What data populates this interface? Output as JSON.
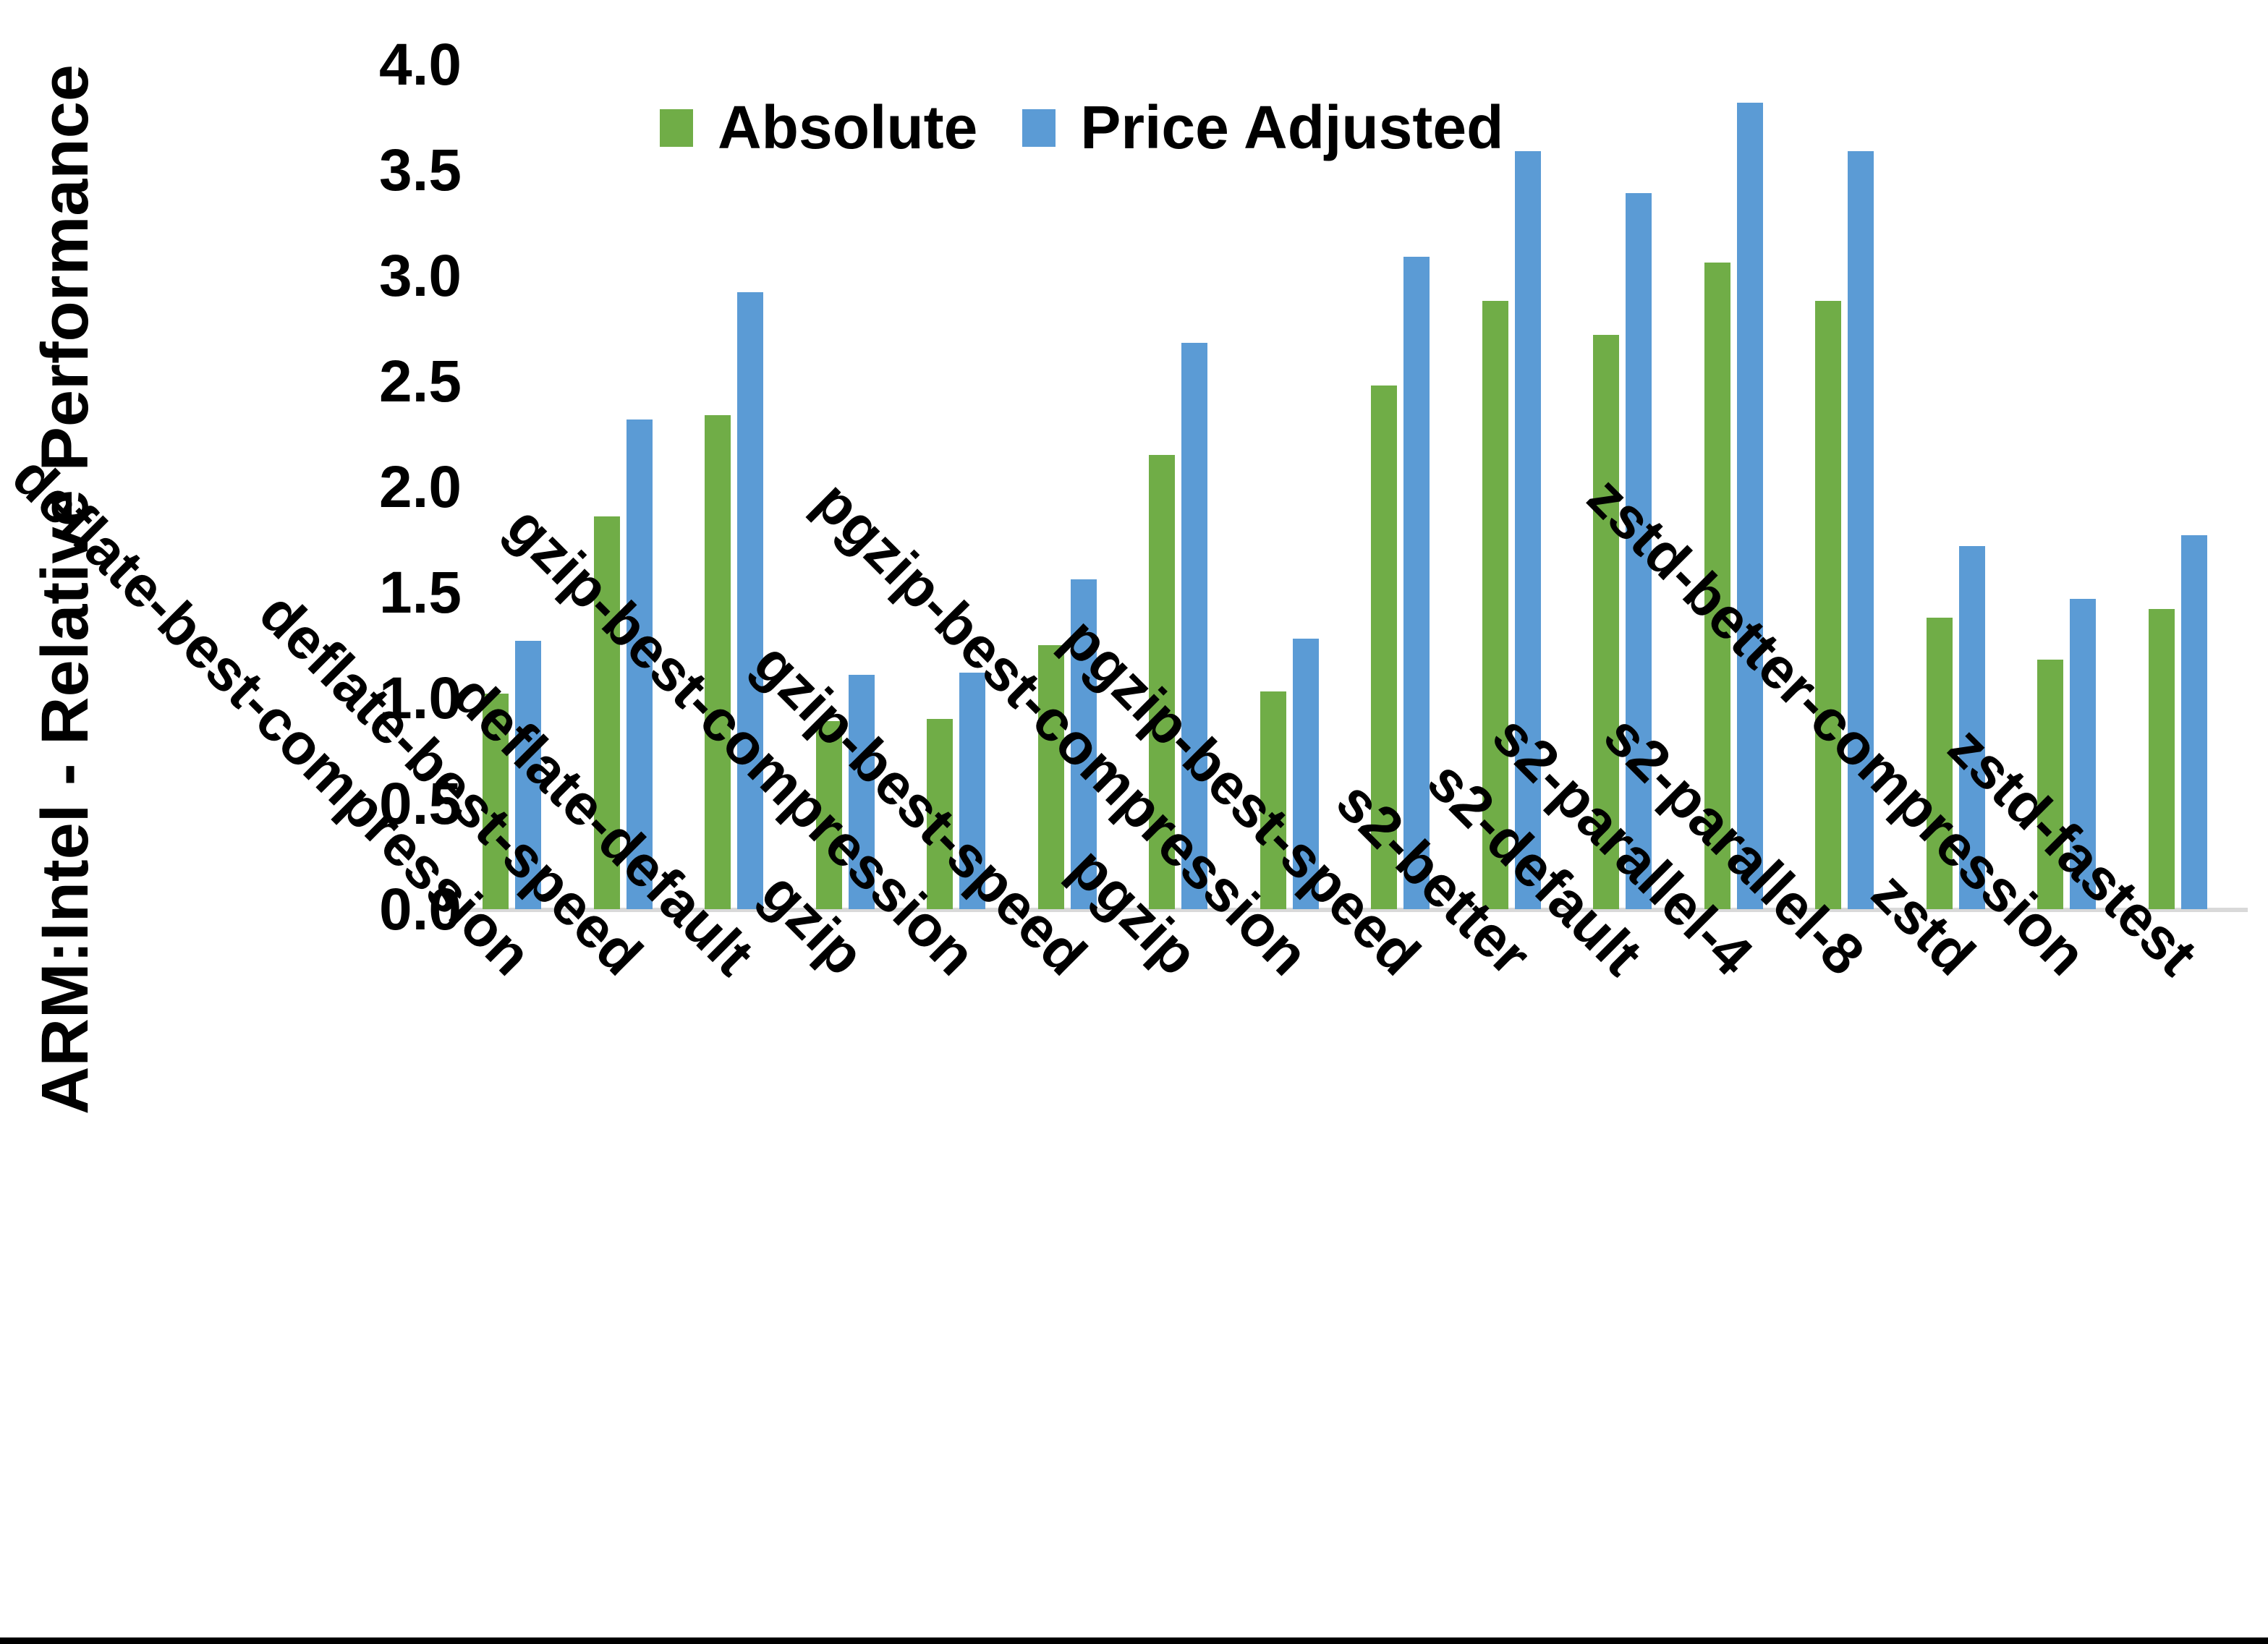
{
  "chart_data": {
    "type": "bar",
    "title": "",
    "ylabel": "ARM:Intel - Relative Performance",
    "xlabel": "",
    "categories": [
      "deflate-best-compression",
      "deflate-best-speed",
      "deflate-default",
      "gzip",
      "gzip-best-compression",
      "gzip-best-speed",
      "pgzip",
      "pgzip-best-compression",
      "pgzip-best-speed",
      "s2-better",
      "s2-default",
      "s2-parallel-4",
      "s2-parallel-8",
      "zstd",
      "zstd-better-compression",
      "zstd-fastest"
    ],
    "series": [
      {
        "name": "Absolute",
        "color": "#70AD47",
        "values": [
          1.02,
          1.86,
          2.34,
          0.89,
          0.9,
          1.25,
          2.15,
          1.03,
          2.48,
          2.88,
          2.72,
          3.06,
          2.88,
          1.38,
          1.18,
          1.42
        ]
      },
      {
        "name": "Price Adjusted",
        "color": "#5B9BD5",
        "values": [
          1.27,
          2.32,
          2.92,
          1.11,
          1.12,
          1.56,
          2.68,
          1.28,
          3.09,
          3.59,
          3.39,
          3.82,
          3.59,
          1.72,
          1.47,
          1.77
        ]
      }
    ],
    "ylim": [
      0.0,
      4.0
    ],
    "yticks": [
      "0.0",
      "0.5",
      "1.0",
      "1.5",
      "2.0",
      "2.5",
      "3.0",
      "3.5",
      "4.0"
    ],
    "legend_position": "top-center",
    "grid": false,
    "axis_color": "#D9D9D9"
  }
}
